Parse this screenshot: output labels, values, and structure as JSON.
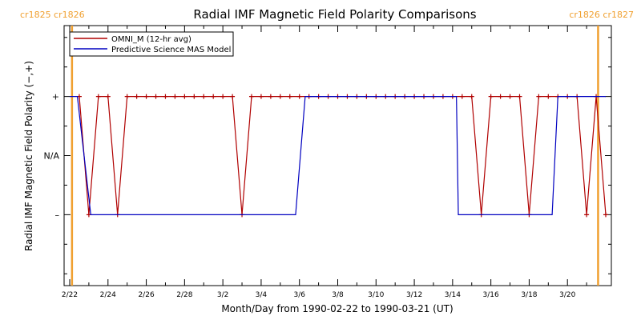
{
  "chart_data": {
    "type": "line",
    "title": "Radial IMF Magnetic Field Polarity Comparisons",
    "xlabel": "Month/Day from 1990-02-22 to 1990-03-21 (UT)",
    "ylabel": "Radial IMF Magnetic Field Polarity (−,+)",
    "x_unit": "days from 1990-02-22",
    "xlim": [
      0,
      28
    ],
    "ylim": [
      -2.2,
      2.2
    ],
    "x_tick_labels": [
      {
        "x": 0,
        "label": "2/22"
      },
      {
        "x": 2,
        "label": "2/24"
      },
      {
        "x": 4,
        "label": "2/26"
      },
      {
        "x": 6,
        "label": "2/28"
      },
      {
        "x": 8,
        "label": "3/2"
      },
      {
        "x": 10,
        "label": "3/4"
      },
      {
        "x": 12,
        "label": "3/6"
      },
      {
        "x": 14,
        "label": "3/8"
      },
      {
        "x": 16,
        "label": "3/10"
      },
      {
        "x": 18,
        "label": "3/12"
      },
      {
        "x": 20,
        "label": "3/14"
      },
      {
        "x": 22,
        "label": "3/16"
      },
      {
        "x": 24,
        "label": "3/18"
      },
      {
        "x": 26,
        "label": "3/20"
      }
    ],
    "y_tick_labels": [
      {
        "y": 1,
        "label": "+"
      },
      {
        "y": 0,
        "label": "N/A"
      },
      {
        "y": -1,
        "label": "–"
      }
    ],
    "carrington_markers": [
      {
        "x": 0.12,
        "label": "cr1825 cr1826",
        "side": "left"
      },
      {
        "x": 27.6,
        "label": "cr1826 cr1827",
        "side": "right"
      }
    ],
    "series": [
      {
        "name": "OMNI_M (12-hr avg)",
        "color": "#b00000",
        "marker": "+",
        "points": [
          [
            0.5,
            1
          ],
          [
            1.0,
            -1
          ],
          [
            1.5,
            1
          ],
          [
            2.0,
            1
          ],
          [
            2.5,
            -1
          ],
          [
            3.0,
            1
          ],
          [
            3.5,
            1
          ],
          [
            4.0,
            1
          ],
          [
            4.5,
            1
          ],
          [
            5.0,
            1
          ],
          [
            5.5,
            1
          ],
          [
            6.0,
            1
          ],
          [
            6.5,
            1
          ],
          [
            7.0,
            1
          ],
          [
            7.5,
            1
          ],
          [
            8.0,
            1
          ],
          [
            8.5,
            1
          ],
          [
            9.0,
            -1
          ],
          [
            9.5,
            1
          ],
          [
            10.0,
            1
          ],
          [
            10.5,
            1
          ],
          [
            11.0,
            1
          ],
          [
            11.5,
            1
          ],
          [
            12.0,
            1
          ],
          [
            12.5,
            1
          ],
          [
            13.0,
            1
          ],
          [
            13.5,
            1
          ],
          [
            14.0,
            1
          ],
          [
            14.5,
            1
          ],
          [
            15.0,
            1
          ],
          [
            15.5,
            1
          ],
          [
            16.0,
            1
          ],
          [
            16.5,
            1
          ],
          [
            17.0,
            1
          ],
          [
            17.5,
            1
          ],
          [
            18.0,
            1
          ],
          [
            18.5,
            1
          ],
          [
            19.0,
            1
          ],
          [
            19.5,
            1
          ],
          [
            20.0,
            1
          ],
          [
            20.5,
            1
          ],
          [
            21.0,
            1
          ],
          [
            21.5,
            -1
          ],
          [
            22.0,
            1
          ],
          [
            22.5,
            1
          ],
          [
            23.0,
            1
          ],
          [
            23.5,
            1
          ],
          [
            24.0,
            -1
          ],
          [
            24.5,
            1
          ],
          [
            25.0,
            1
          ],
          [
            25.5,
            1
          ],
          [
            26.0,
            1
          ],
          [
            26.5,
            1
          ],
          [
            27.0,
            -1
          ],
          [
            27.5,
            1
          ],
          [
            28.0,
            -1
          ]
        ]
      },
      {
        "name": "Predictive Science MAS Model",
        "color": "#0000c0",
        "points": [
          [
            0.0,
            1
          ],
          [
            0.4,
            1
          ],
          [
            1.1,
            -1
          ],
          [
            11.8,
            -1
          ],
          [
            12.3,
            1
          ],
          [
            20.2,
            1
          ],
          [
            20.3,
            -1
          ],
          [
            25.2,
            -1
          ],
          [
            25.5,
            1
          ],
          [
            28.0,
            1
          ]
        ]
      }
    ],
    "legend_position": "top-left",
    "grid": false
  }
}
